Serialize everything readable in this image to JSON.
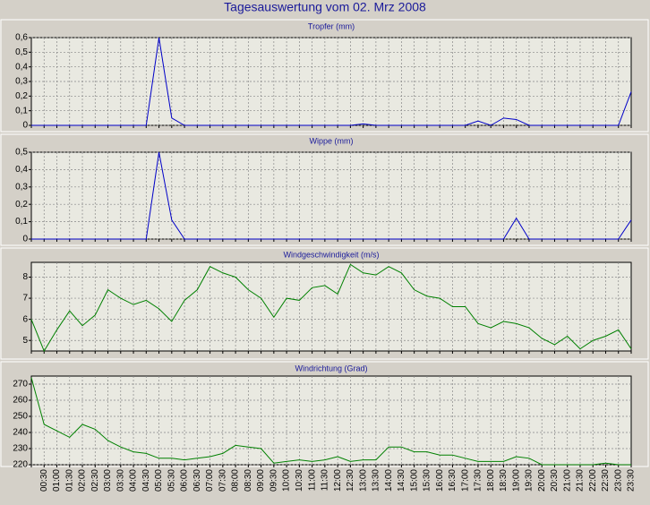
{
  "title": "Tagesauswertung vom 02. Mrz 2008",
  "chart_data": [
    {
      "type": "line",
      "title": "Tropfer (mm)",
      "color": "#0000c8",
      "grid": true,
      "ylim": [
        0,
        0.6
      ],
      "yticks": [
        0,
        {
          "value": 0.1,
          "label": "0,1"
        },
        {
          "value": 0.2,
          "label": "0,2"
        },
        {
          "value": 0.3,
          "label": "0,3"
        },
        {
          "value": 0.4,
          "label": "0,4"
        },
        {
          "value": 0.5,
          "label": "0,5"
        },
        {
          "value": 0.6,
          "label": "0,6"
        }
      ],
      "values": [
        0,
        0,
        0,
        0,
        0,
        0,
        0,
        0,
        0,
        0,
        0.6,
        0.05,
        0,
        0,
        0,
        0,
        0,
        0,
        0,
        0,
        0,
        0,
        0,
        0,
        0,
        0,
        0.01,
        0,
        0,
        0,
        0,
        0,
        0,
        0,
        0,
        0.03,
        0,
        0.05,
        0.04,
        0,
        0,
        0,
        0,
        0,
        0,
        0,
        0,
        0.23
      ]
    },
    {
      "type": "line",
      "title": "Wippe (mm)",
      "color": "#0000c8",
      "grid": true,
      "ylim": [
        0,
        0.5
      ],
      "yticks": [
        0,
        {
          "value": 0.1,
          "label": "0,1"
        },
        {
          "value": 0.2,
          "label": "0,2"
        },
        {
          "value": 0.3,
          "label": "0,3"
        },
        {
          "value": 0.4,
          "label": "0,4"
        },
        {
          "value": 0.5,
          "label": "0,5"
        }
      ],
      "values": [
        0,
        0,
        0,
        0,
        0,
        0,
        0,
        0,
        0,
        0,
        0.5,
        0.11,
        0,
        0,
        0,
        0,
        0,
        0,
        0,
        0,
        0,
        0,
        0,
        0,
        0,
        0,
        0,
        0,
        0,
        0,
        0,
        0,
        0,
        0,
        0,
        0,
        0,
        0,
        0.12,
        0,
        0,
        0,
        0,
        0,
        0,
        0,
        0,
        0.11
      ]
    },
    {
      "type": "line",
      "title": "Windgeschwindigkeit (m/s)",
      "color": "#008000",
      "grid": true,
      "ylim": [
        4.5,
        8.7
      ],
      "yticks": [
        5,
        6,
        7,
        8
      ],
      "values": [
        6.0,
        4.5,
        5.5,
        6.4,
        5.7,
        6.2,
        7.4,
        7.0,
        6.7,
        6.9,
        6.5,
        5.9,
        6.9,
        7.4,
        8.5,
        8.2,
        8.0,
        7.4,
        7.0,
        6.1,
        7.0,
        6.9,
        7.5,
        7.6,
        7.2,
        8.6,
        8.2,
        8.1,
        8.5,
        8.2,
        7.4,
        7.1,
        7.0,
        6.6,
        6.6,
        5.8,
        5.6,
        5.9,
        5.8,
        5.6,
        5.1,
        4.8,
        5.2,
        4.6,
        5.0,
        5.2,
        5.5,
        4.6
      ]
    },
    {
      "type": "line",
      "title": "Windrichtung (Grad)",
      "color": "#008000",
      "grid": true,
      "ylim": [
        220,
        275
      ],
      "yticks": [
        220,
        230,
        240,
        250,
        260,
        270
      ],
      "values": [
        274,
        245,
        241,
        237,
        245,
        242,
        235,
        231,
        228,
        227,
        224,
        224,
        223,
        224,
        225,
        227,
        232,
        231,
        230,
        221,
        222,
        223,
        222,
        223,
        225,
        222,
        223,
        223,
        231,
        231,
        228,
        228,
        226,
        226,
        224,
        222,
        222,
        222,
        225,
        224,
        220,
        220,
        220,
        220,
        220,
        221,
        220,
        220
      ],
      "categories": [
        null,
        "00:30",
        "01:00",
        "01:30",
        "02:00",
        "02:30",
        "03:00",
        "03:30",
        "04:00",
        "04:30",
        "05:00",
        "05:30",
        "06:00",
        "06:30",
        "07:00",
        "07:30",
        "08:00",
        "08:30",
        "09:00",
        "09:30",
        "10:00",
        "10:30",
        "11:00",
        "11:30",
        "12:00",
        "12:30",
        "13:00",
        "13:30",
        "14:00",
        "14:30",
        "15:00",
        "15:30",
        "16:00",
        "16:30",
        "17:00",
        "17:30",
        "18:00",
        "18:30",
        "19:00",
        "19:30",
        "20:00",
        "20:30",
        "21:00",
        "21:30",
        "22:00",
        "22:30",
        "23:00",
        "23:30"
      ]
    }
  ]
}
